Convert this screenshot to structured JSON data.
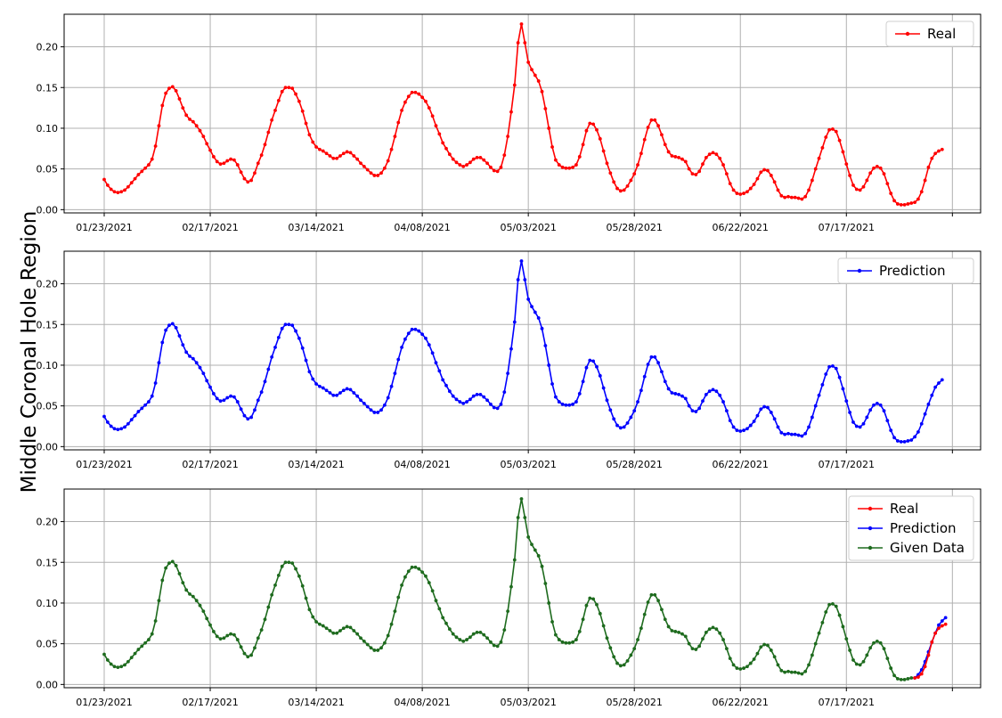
{
  "figure": {
    "ylabel": "Middle Coronal Hole Region",
    "colors": {
      "real": "#ff0000",
      "prediction": "#0000ff",
      "given": "#1e6b1e",
      "grid": "#b0b0b0"
    }
  },
  "chart_data": [
    {
      "type": "line",
      "title": "",
      "xlabel": "",
      "ylabel": "",
      "x_start": "01/23/2021",
      "x_step_days": 1,
      "x_ticks": [
        "01/23/2021",
        "02/17/2021",
        "03/14/2021",
        "04/08/2021",
        "05/03/2021",
        "05/28/2021",
        "06/22/2021",
        "07/17/2021",
        ""
      ],
      "y_ticks": [
        "0.00",
        "0.05",
        "0.10",
        "0.15",
        "0.20"
      ],
      "ylim": [
        -0.004,
        0.24
      ],
      "grid": true,
      "legend": "top-right",
      "series": [
        {
          "name": "Real",
          "color": "#ff0000",
          "values": [
            0.037,
            0.03,
            0.025,
            0.022,
            0.021,
            0.022,
            0.024,
            0.028,
            0.033,
            0.038,
            0.043,
            0.047,
            0.051,
            0.055,
            0.062,
            0.078,
            0.103,
            0.128,
            0.143,
            0.149,
            0.151,
            0.146,
            0.136,
            0.125,
            0.116,
            0.111,
            0.108,
            0.103,
            0.097,
            0.09,
            0.081,
            0.073,
            0.065,
            0.059,
            0.056,
            0.057,
            0.06,
            0.062,
            0.061,
            0.055,
            0.046,
            0.038,
            0.034,
            0.036,
            0.045,
            0.057,
            0.067,
            0.08,
            0.095,
            0.11,
            0.122,
            0.134,
            0.145,
            0.15,
            0.15,
            0.149,
            0.142,
            0.133,
            0.121,
            0.106,
            0.092,
            0.083,
            0.077,
            0.074,
            0.072,
            0.069,
            0.066,
            0.063,
            0.063,
            0.066,
            0.069,
            0.071,
            0.07,
            0.066,
            0.062,
            0.057,
            0.053,
            0.049,
            0.045,
            0.042,
            0.042,
            0.045,
            0.051,
            0.06,
            0.074,
            0.09,
            0.107,
            0.122,
            0.132,
            0.139,
            0.144,
            0.144,
            0.142,
            0.138,
            0.133,
            0.125,
            0.115,
            0.103,
            0.093,
            0.082,
            0.075,
            0.068,
            0.062,
            0.058,
            0.055,
            0.053,
            0.055,
            0.058,
            0.062,
            0.064,
            0.064,
            0.061,
            0.057,
            0.052,
            0.048,
            0.047,
            0.052,
            0.067,
            0.09,
            0.12,
            0.153,
            0.205,
            0.228,
            0.205,
            0.181,
            0.172,
            0.165,
            0.158,
            0.145,
            0.124,
            0.1,
            0.077,
            0.061,
            0.055,
            0.052,
            0.051,
            0.051,
            0.052,
            0.055,
            0.065,
            0.08,
            0.097,
            0.106,
            0.105,
            0.098,
            0.087,
            0.072,
            0.057,
            0.045,
            0.034,
            0.026,
            0.023,
            0.024,
            0.029,
            0.036,
            0.044,
            0.055,
            0.069,
            0.086,
            0.101,
            0.11,
            0.11,
            0.103,
            0.092,
            0.08,
            0.071,
            0.066,
            0.065,
            0.064,
            0.062,
            0.059,
            0.05,
            0.044,
            0.043,
            0.047,
            0.056,
            0.064,
            0.068,
            0.07,
            0.068,
            0.063,
            0.055,
            0.044,
            0.032,
            0.024,
            0.02,
            0.019,
            0.02,
            0.022,
            0.026,
            0.031,
            0.038,
            0.046,
            0.049,
            0.048,
            0.042,
            0.034,
            0.024,
            0.017,
            0.015,
            0.016,
            0.015,
            0.015,
            0.014,
            0.013,
            0.016,
            0.024,
            0.036,
            0.05,
            0.063,
            0.076,
            0.089,
            0.098,
            0.099,
            0.096,
            0.085,
            0.071,
            0.056,
            0.042,
            0.03,
            0.025,
            0.024,
            0.028,
            0.036,
            0.045,
            0.051,
            0.053,
            0.051,
            0.044,
            0.032,
            0.02,
            0.011,
            0.007,
            0.006,
            0.006,
            0.007,
            0.008,
            0.009,
            0.013,
            0.022,
            0.036,
            0.052,
            0.063,
            0.069,
            0.072,
            0.074
          ]
        }
      ]
    },
    {
      "type": "line",
      "title": "",
      "xlabel": "",
      "ylabel": "",
      "x_start": "01/23/2021",
      "x_step_days": 1,
      "x_ticks": [
        "01/23/2021",
        "02/17/2021",
        "03/14/2021",
        "04/08/2021",
        "05/03/2021",
        "05/28/2021",
        "06/22/2021",
        "07/17/2021",
        ""
      ],
      "y_ticks": [
        "0.00",
        "0.05",
        "0.10",
        "0.15",
        "0.20"
      ],
      "ylim": [
        -0.004,
        0.24
      ],
      "grid": true,
      "legend": "top-right",
      "series": [
        {
          "name": "Prediction",
          "color": "#0000ff",
          "values": [
            0.037,
            0.03,
            0.025,
            0.022,
            0.021,
            0.022,
            0.024,
            0.028,
            0.033,
            0.038,
            0.043,
            0.047,
            0.051,
            0.055,
            0.062,
            0.078,
            0.103,
            0.128,
            0.143,
            0.149,
            0.151,
            0.146,
            0.136,
            0.125,
            0.116,
            0.111,
            0.108,
            0.103,
            0.097,
            0.09,
            0.081,
            0.073,
            0.065,
            0.059,
            0.056,
            0.057,
            0.06,
            0.062,
            0.061,
            0.055,
            0.046,
            0.038,
            0.034,
            0.036,
            0.045,
            0.057,
            0.067,
            0.08,
            0.095,
            0.11,
            0.122,
            0.134,
            0.145,
            0.15,
            0.15,
            0.149,
            0.142,
            0.133,
            0.121,
            0.106,
            0.092,
            0.083,
            0.077,
            0.074,
            0.072,
            0.069,
            0.066,
            0.063,
            0.063,
            0.066,
            0.069,
            0.071,
            0.07,
            0.066,
            0.062,
            0.057,
            0.053,
            0.049,
            0.045,
            0.042,
            0.042,
            0.045,
            0.051,
            0.06,
            0.074,
            0.09,
            0.107,
            0.122,
            0.132,
            0.139,
            0.144,
            0.144,
            0.142,
            0.138,
            0.133,
            0.125,
            0.115,
            0.103,
            0.093,
            0.082,
            0.075,
            0.068,
            0.062,
            0.058,
            0.055,
            0.053,
            0.055,
            0.058,
            0.062,
            0.064,
            0.064,
            0.061,
            0.057,
            0.052,
            0.048,
            0.047,
            0.052,
            0.067,
            0.09,
            0.12,
            0.153,
            0.205,
            0.228,
            0.205,
            0.181,
            0.172,
            0.165,
            0.158,
            0.145,
            0.124,
            0.1,
            0.077,
            0.061,
            0.055,
            0.052,
            0.051,
            0.051,
            0.052,
            0.055,
            0.065,
            0.08,
            0.097,
            0.106,
            0.105,
            0.098,
            0.087,
            0.072,
            0.057,
            0.045,
            0.034,
            0.026,
            0.023,
            0.024,
            0.029,
            0.036,
            0.044,
            0.055,
            0.069,
            0.086,
            0.101,
            0.11,
            0.11,
            0.103,
            0.092,
            0.08,
            0.071,
            0.066,
            0.065,
            0.064,
            0.062,
            0.059,
            0.05,
            0.044,
            0.043,
            0.047,
            0.056,
            0.064,
            0.068,
            0.07,
            0.068,
            0.063,
            0.055,
            0.044,
            0.032,
            0.024,
            0.02,
            0.019,
            0.02,
            0.022,
            0.026,
            0.031,
            0.038,
            0.046,
            0.049,
            0.048,
            0.042,
            0.034,
            0.024,
            0.017,
            0.015,
            0.016,
            0.015,
            0.015,
            0.014,
            0.013,
            0.016,
            0.024,
            0.036,
            0.05,
            0.063,
            0.076,
            0.089,
            0.098,
            0.099,
            0.096,
            0.085,
            0.071,
            0.056,
            0.042,
            0.03,
            0.025,
            0.024,
            0.028,
            0.036,
            0.045,
            0.051,
            0.053,
            0.051,
            0.044,
            0.032,
            0.02,
            0.011,
            0.007,
            0.006,
            0.006,
            0.007,
            0.008,
            0.012,
            0.018,
            0.028,
            0.04,
            0.052,
            0.063,
            0.073,
            0.078,
            0.082
          ]
        }
      ]
    },
    {
      "type": "line",
      "title": "",
      "xlabel": "",
      "ylabel": "",
      "x_start": "01/23/2021",
      "x_step_days": 1,
      "x_ticks": [
        "01/23/2021",
        "02/17/2021",
        "03/14/2021",
        "04/08/2021",
        "05/03/2021",
        "05/28/2021",
        "06/22/2021",
        "07/17/2021",
        ""
      ],
      "y_ticks": [
        "0.00",
        "0.05",
        "0.10",
        "0.15",
        "0.20"
      ],
      "ylim": [
        -0.004,
        0.24
      ],
      "grid": true,
      "legend": "top-right",
      "series": [
        {
          "name": "Real",
          "color": "#ff0000",
          "start_index": 237,
          "values": [
            0.008,
            0.009,
            0.013,
            0.022,
            0.036,
            0.052,
            0.063,
            0.069,
            0.072,
            0.074
          ]
        },
        {
          "name": "Prediction",
          "color": "#0000ff",
          "start_index": 237,
          "values": [
            0.008,
            0.012,
            0.018,
            0.028,
            0.04,
            0.052,
            0.063,
            0.073,
            0.078,
            0.082
          ]
        },
        {
          "name": "Given Data",
          "color": "#1e6b1e",
          "start_index": 0,
          "values": [
            0.037,
            0.03,
            0.025,
            0.022,
            0.021,
            0.022,
            0.024,
            0.028,
            0.033,
            0.038,
            0.043,
            0.047,
            0.051,
            0.055,
            0.062,
            0.078,
            0.103,
            0.128,
            0.143,
            0.149,
            0.151,
            0.146,
            0.136,
            0.125,
            0.116,
            0.111,
            0.108,
            0.103,
            0.097,
            0.09,
            0.081,
            0.073,
            0.065,
            0.059,
            0.056,
            0.057,
            0.06,
            0.062,
            0.061,
            0.055,
            0.046,
            0.038,
            0.034,
            0.036,
            0.045,
            0.057,
            0.067,
            0.08,
            0.095,
            0.11,
            0.122,
            0.134,
            0.145,
            0.15,
            0.15,
            0.149,
            0.142,
            0.133,
            0.121,
            0.106,
            0.092,
            0.083,
            0.077,
            0.074,
            0.072,
            0.069,
            0.066,
            0.063,
            0.063,
            0.066,
            0.069,
            0.071,
            0.07,
            0.066,
            0.062,
            0.057,
            0.053,
            0.049,
            0.045,
            0.042,
            0.042,
            0.045,
            0.051,
            0.06,
            0.074,
            0.09,
            0.107,
            0.122,
            0.132,
            0.139,
            0.144,
            0.144,
            0.142,
            0.138,
            0.133,
            0.125,
            0.115,
            0.103,
            0.093,
            0.082,
            0.075,
            0.068,
            0.062,
            0.058,
            0.055,
            0.053,
            0.055,
            0.058,
            0.062,
            0.064,
            0.064,
            0.061,
            0.057,
            0.052,
            0.048,
            0.047,
            0.052,
            0.067,
            0.09,
            0.12,
            0.153,
            0.205,
            0.228,
            0.205,
            0.181,
            0.172,
            0.165,
            0.158,
            0.145,
            0.124,
            0.1,
            0.077,
            0.061,
            0.055,
            0.052,
            0.051,
            0.051,
            0.052,
            0.055,
            0.065,
            0.08,
            0.097,
            0.106,
            0.105,
            0.098,
            0.087,
            0.072,
            0.057,
            0.045,
            0.034,
            0.026,
            0.023,
            0.024,
            0.029,
            0.036,
            0.044,
            0.055,
            0.069,
            0.086,
            0.101,
            0.11,
            0.11,
            0.103,
            0.092,
            0.08,
            0.071,
            0.066,
            0.065,
            0.064,
            0.062,
            0.059,
            0.05,
            0.044,
            0.043,
            0.047,
            0.056,
            0.064,
            0.068,
            0.07,
            0.068,
            0.063,
            0.055,
            0.044,
            0.032,
            0.024,
            0.02,
            0.019,
            0.02,
            0.022,
            0.026,
            0.031,
            0.038,
            0.046,
            0.049,
            0.048,
            0.042,
            0.034,
            0.024,
            0.017,
            0.015,
            0.016,
            0.015,
            0.015,
            0.014,
            0.013,
            0.016,
            0.024,
            0.036,
            0.05,
            0.063,
            0.076,
            0.089,
            0.098,
            0.099,
            0.096,
            0.085,
            0.071,
            0.056,
            0.042,
            0.03,
            0.025,
            0.024,
            0.028,
            0.036,
            0.045,
            0.051,
            0.053,
            0.051,
            0.044,
            0.032,
            0.02,
            0.011,
            0.007,
            0.006,
            0.006,
            0.007,
            0.008
          ]
        }
      ]
    }
  ]
}
